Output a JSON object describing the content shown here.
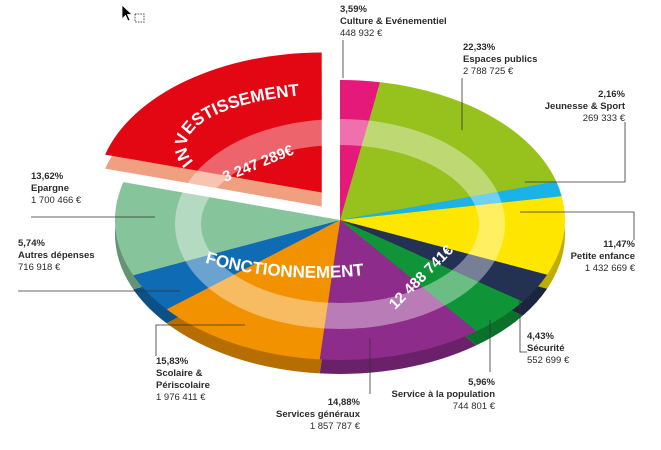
{
  "chart_data": {
    "type": "pie",
    "title": "",
    "unit": "€",
    "groups": [
      {
        "name": "INVESTISSEMENT",
        "value_label": "3 247 289€",
        "value": 3247289
      },
      {
        "name": "FONCTIONNEMENT",
        "value_label": "12 488 741€",
        "value": 12488741
      }
    ],
    "slices": [
      {
        "key": "culture",
        "label": "Culture & Evénementiel",
        "pct_label": "3,59%",
        "pct": 3.59,
        "value_label": "448 932 €",
        "value": 448932,
        "color": "#e5197a"
      },
      {
        "key": "espaces",
        "label": "Espaces publics",
        "pct_label": "22,33%",
        "pct": 22.33,
        "value_label": "2 788 725 €",
        "value": 2788725,
        "color": "#97c21d"
      },
      {
        "key": "jeunesse",
        "label": "Jeunesse & Sport",
        "pct_label": "2,16%",
        "pct": 2.16,
        "value_label": "269 333 €",
        "value": 269333,
        "color": "#1ab3e8"
      },
      {
        "key": "petite",
        "label": "Petite enfance",
        "pct_label": "11,47%",
        "pct": 11.47,
        "value_label": "1 432 669 €",
        "value": 1432669,
        "color": "#ffe600"
      },
      {
        "key": "securite",
        "label": "Sécurité",
        "pct_label": "4,43%",
        "pct": 4.43,
        "value_label": "552 699 €",
        "value": 552699,
        "color": "#233154"
      },
      {
        "key": "service",
        "label": "Service à la population",
        "pct_label": "5,96%",
        "pct": 5.96,
        "value_label": "744 801 €",
        "value": 744801,
        "color": "#0f9538"
      },
      {
        "key": "generaux",
        "label": "Services généraux",
        "pct_label": "14,88%",
        "pct": 14.88,
        "value_label": "1 857 787 €",
        "value": 1857787,
        "color": "#8e2c8c"
      },
      {
        "key": "scolaire",
        "label": "Scolaire & Périscolaire",
        "label_lines": [
          "Scolaire &",
          "Périscolaire"
        ],
        "pct_label": "15,83%",
        "pct": 15.83,
        "value_label": "1 976 411 €",
        "value": 1976411,
        "color": "#f39200"
      },
      {
        "key": "autres",
        "label": "Autres dépenses",
        "pct_label": "5,74%",
        "pct": 5.74,
        "value_label": "716 918 €",
        "value": 716918,
        "color": "#0f6bb3"
      },
      {
        "key": "epargne",
        "label": "Epargne",
        "pct_label": "13,62%",
        "pct": 13.62,
        "value_label": "1 700 466 €",
        "value": 1700466,
        "color": "#86c59b"
      }
    ],
    "investissement_color": "#e30613"
  }
}
